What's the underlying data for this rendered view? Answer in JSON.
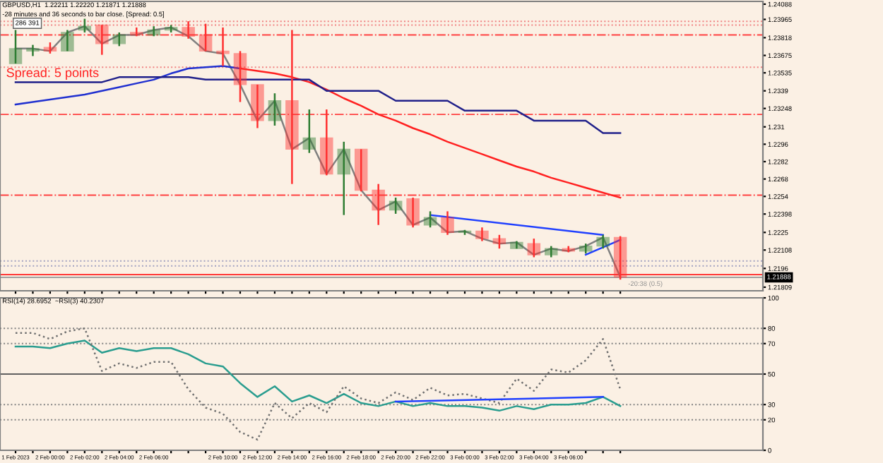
{
  "chart_data": [
    {
      "type": "candlestick",
      "title": "GBPUSD,H1  1.22211 1.22220 1.21871 1.21888",
      "subtitle": "-28 minutes and 36 seconds to bar close. [Spread: 0.5]",
      "annotations": [
        "286 391",
        "Spread: 5 points",
        {
          "text": "-20:38 (0.5)",
          "y": 1.2189
        }
      ],
      "categories": [
        null,
        null,
        null,
        null,
        null,
        null,
        null,
        null,
        null,
        null,
        null,
        null,
        null,
        null,
        null,
        null,
        null,
        null,
        null,
        null,
        null,
        null,
        null,
        null,
        null,
        null,
        null,
        null,
        null,
        null,
        null,
        null,
        null,
        null,
        null,
        null
      ],
      "ohlc": [
        [
          1.2361,
          1.2388,
          1.2361,
          1.2373
        ],
        [
          1.2371,
          1.2376,
          1.2367,
          1.2373
        ],
        [
          1.2374,
          1.2378,
          1.2369,
          1.2371
        ],
        [
          1.2371,
          1.2388,
          1.2371,
          1.2386
        ],
        [
          1.2388,
          1.2397,
          1.2386,
          1.2391
        ],
        [
          1.2392,
          1.2392,
          1.2368,
          1.2377
        ],
        [
          1.2377,
          1.2386,
          1.2375,
          1.2384
        ],
        [
          1.2386,
          1.239,
          1.2383,
          1.2384
        ],
        [
          1.2384,
          1.2391,
          1.2383,
          1.2388
        ],
        [
          1.2388,
          1.2392,
          1.2386,
          1.239
        ],
        [
          1.239,
          1.2395,
          1.2381,
          1.2383
        ],
        [
          1.2384,
          1.2393,
          1.2371,
          1.2371
        ],
        [
          1.2371,
          1.239,
          1.2359,
          1.2369
        ],
        [
          1.2369,
          1.2371,
          1.233,
          1.2344
        ],
        [
          1.2344,
          1.2344,
          1.2309,
          1.2315
        ],
        [
          1.2315,
          1.2337,
          1.2311,
          1.2331
        ],
        [
          1.2331,
          1.2388,
          1.2264,
          1.2292
        ],
        [
          1.2292,
          1.2324,
          1.2289,
          1.2301
        ],
        [
          1.2301,
          1.2324,
          1.2271,
          1.2272
        ],
        [
          1.2272,
          1.2298,
          1.2239,
          1.2292
        ],
        [
          1.2292,
          1.2292,
          1.2258,
          1.2259
        ],
        [
          1.2259,
          1.2264,
          1.2231,
          1.2243
        ],
        [
          1.2243,
          1.2253,
          1.224,
          1.225
        ],
        [
          1.2252,
          1.2253,
          1.2229,
          1.2231
        ],
        [
          1.2231,
          1.2242,
          1.2229,
          1.2237
        ],
        [
          1.2237,
          1.2242,
          1.2223,
          1.2225
        ],
        [
          1.2225,
          1.2227,
          1.2223,
          1.2226
        ],
        [
          1.2226,
          1.2229,
          1.2218,
          1.222
        ],
        [
          1.222,
          1.2223,
          1.2212,
          1.2216
        ],
        [
          1.2212,
          1.2218,
          1.2212,
          1.2217
        ],
        [
          1.2216,
          1.222,
          1.2205,
          1.2207
        ],
        [
          1.2207,
          1.2214,
          1.2205,
          1.2212
        ],
        [
          1.2212,
          1.2214,
          1.2209,
          1.221
        ],
        [
          1.221,
          1.2216,
          1.2208,
          1.2214
        ],
        [
          1.2214,
          1.2223,
          1.2212,
          1.2221
        ],
        [
          1.2221,
          1.2222,
          1.2187,
          1.2189
        ]
      ],
      "colors": [
        "#2e7d32",
        "#2e7d32",
        "#ff3030",
        "#2e7d32",
        "#2e7d32",
        "#ff3030",
        "#2e7d32",
        "#ff3030",
        "#2e7d32",
        "#2e7d32",
        "#ff3030",
        "#ff3030",
        "#ff3030",
        "#ff3030",
        "#ff3030",
        "#2e7d32",
        "#ff3030",
        "#2e7d32",
        "#ff3030",
        "#2e7d32",
        "#ff3030",
        "#ff3030",
        "#2e7d32",
        "#ff3030",
        "#2e7d32",
        "#ff3030",
        "#2e7d32",
        "#ff3030",
        "#ff3030",
        "#2e7d32",
        "#ff3030",
        "#2e7d32",
        "#ff3030",
        "#2e7d32",
        "#2e7d32",
        "#ff3030"
      ],
      "series": [
        {
          "type": "line",
          "color": "#808080",
          "values": [
            1.2373,
            1.2373,
            1.2371,
            1.2386,
            1.2391,
            1.2377,
            1.2384,
            1.2384,
            1.2388,
            1.239,
            1.2383,
            1.2371,
            1.2369,
            1.2344,
            1.2315,
            1.2331,
            1.2292,
            1.2301,
            1.2272,
            1.2292,
            1.2259,
            1.2243,
            1.225,
            1.2231,
            1.2237,
            1.2225,
            1.2226,
            1.222,
            1.2216,
            1.2217,
            1.2207,
            1.2212,
            1.221,
            1.2214,
            1.2221,
            1.2189
          ]
        },
        {
          "type": "line",
          "color": "#2030d0",
          "values": [
            1.2328,
            1.233,
            1.2332,
            1.2334,
            1.2336,
            1.2339,
            1.2342,
            1.2345,
            1.2348,
            1.2353,
            1.2357,
            1.2358,
            1.2359,
            1.2357,
            null,
            null,
            null,
            null,
            null,
            null,
            null,
            null,
            null,
            null,
            null,
            null,
            null,
            null,
            null,
            null,
            null,
            null,
            null,
            null,
            null,
            null
          ]
        },
        {
          "type": "line",
          "color": "#ff2020",
          "values": [
            null,
            null,
            null,
            null,
            null,
            null,
            null,
            null,
            null,
            null,
            null,
            null,
            null,
            1.2357,
            1.2355,
            1.2353,
            1.235,
            1.2346,
            1.234,
            1.2333,
            1.2327,
            1.232,
            1.2315,
            1.2309,
            1.2304,
            1.2298,
            1.2293,
            1.2288,
            1.2283,
            1.2278,
            1.2274,
            1.2269,
            1.2265,
            1.2261,
            1.2257,
            1.2253
          ]
        },
        {
          "type": "line",
          "color": "#20208a",
          "values": [
            1.2346,
            1.2346,
            1.2346,
            1.2346,
            1.2346,
            1.2346,
            1.235,
            1.235,
            1.235,
            1.235,
            1.235,
            1.2348,
            1.2348,
            1.2348,
            1.2348,
            1.2348,
            1.2348,
            1.2348,
            1.2339,
            1.2339,
            1.2339,
            1.2339,
            1.2331,
            1.2331,
            1.2331,
            1.2331,
            1.2323,
            1.2323,
            1.2323,
            1.2323,
            1.2315,
            1.2315,
            1.2315,
            1.2315,
            1.2305,
            1.2305
          ]
        },
        {
          "type": "line",
          "color": "#2040ff",
          "values": [
            null,
            null,
            null,
            null,
            null,
            null,
            null,
            null,
            null,
            null,
            null,
            null,
            null,
            null,
            null,
            null,
            null,
            null,
            null,
            null,
            null,
            null,
            null,
            null,
            1.2239,
            null,
            null,
            null,
            null,
            null,
            null,
            null,
            null,
            null,
            1.2223,
            null
          ]
        },
        {
          "type": "line",
          "color": "#2040ff",
          "values": [
            null,
            null,
            null,
            null,
            null,
            null,
            null,
            null,
            null,
            null,
            null,
            null,
            null,
            null,
            null,
            null,
            null,
            null,
            null,
            null,
            null,
            null,
            null,
            null,
            null,
            null,
            null,
            null,
            null,
            null,
            null,
            null,
            null,
            1.2207,
            null,
            1.2219
          ]
        }
      ],
      "ref_lines": [
        {
          "axis": "y",
          "value": 1.2384,
          "color": "#ff4040",
          "line_style": "dashdot"
        },
        {
          "axis": "y",
          "value": 1.232,
          "color": "#ff4040",
          "line_style": "dashdot"
        },
        {
          "axis": "y",
          "value": 1.2255,
          "color": "#ff4040",
          "line_style": "dashdot"
        },
        {
          "axis": "y",
          "value": 1.2395,
          "color": "#f08080",
          "line_style": "dotted"
        },
        {
          "axis": "y",
          "value": 1.2392,
          "color": "#f08080",
          "line_style": "dotted"
        },
        {
          "axis": "y",
          "value": 1.2358,
          "color": "#f08080",
          "line_style": "dotted"
        },
        {
          "axis": "y",
          "value": 1.2202,
          "color": "#a0a0c0",
          "line_style": "dotted"
        },
        {
          "axis": "y",
          "value": 1.2198,
          "color": "#a0a0c0",
          "line_style": "dotted"
        },
        {
          "axis": "y",
          "value": 1.2191,
          "color": "#ff2020",
          "line_style": "solid"
        },
        {
          "axis": "y",
          "value": 1.21888,
          "color": "#a0a0a0",
          "line_style": "solid",
          "label": "1.21888"
        }
      ],
      "ylim": [
        1.2178,
        1.2411
      ],
      "yticks": [
        1.24088,
        1.23965,
        1.23818,
        1.23675,
        1.23535,
        1.2339,
        1.23248,
        1.231,
        1.2296,
        1.2282,
        1.2268,
        1.2254,
        1.22398,
        1.2225,
        1.22108,
        1.2196,
        1.21809
      ],
      "tick_labels": "y",
      "grid": false,
      "legend": false
    },
    {
      "type": "line",
      "title": "RSI(14) 28.6952  ~RSI(3) 40.2307",
      "categories": [
        "1 Feb 2023",
        null,
        "2 Feb 00:00",
        null,
        "2 Feb 02:00",
        null,
        "2 Feb 04:00",
        null,
        "2 Feb 06:00",
        null,
        null,
        null,
        "2 Feb 10:00",
        null,
        "2 Feb 12:00",
        null,
        "2 Feb 14:00",
        null,
        "2 Feb 16:00",
        null,
        "2 Feb 18:00",
        null,
        "2 Feb 20:00",
        null,
        "2 Feb 22:00",
        null,
        "3 Feb 00:00",
        null,
        "3 Feb 02:00",
        null,
        "3 Feb 04:00",
        null,
        "3 Feb 06:00",
        null,
        null,
        null
      ],
      "series": [
        {
          "color": "#2a9d8f",
          "line_style": "solid",
          "values": [
            68,
            68,
            67,
            70,
            72,
            64,
            67,
            65,
            67,
            67,
            63,
            57,
            55,
            44,
            35,
            42,
            32,
            36,
            31,
            37,
            31,
            29,
            32,
            29,
            31,
            29,
            29,
            28,
            26,
            29,
            27,
            30,
            30,
            31,
            35,
            29
          ]
        },
        {
          "color": "#707070",
          "line_style": "dotted",
          "values": [
            77,
            77,
            73,
            78,
            80,
            52,
            57,
            54,
            58,
            58,
            40,
            28,
            24,
            12,
            7,
            31,
            21,
            31,
            25,
            42,
            34,
            31,
            38,
            33,
            41,
            36,
            37,
            34,
            31,
            47,
            39,
            53,
            51,
            59,
            73,
            40
          ]
        },
        {
          "color": "#2040ff",
          "line_style": "solid",
          "values": [
            null,
            null,
            null,
            null,
            null,
            null,
            null,
            null,
            null,
            null,
            null,
            null,
            null,
            null,
            null,
            null,
            null,
            null,
            null,
            null,
            null,
            null,
            32,
            null,
            null,
            null,
            null,
            null,
            null,
            null,
            null,
            null,
            null,
            null,
            35,
            null
          ]
        }
      ],
      "ref_lines": [
        {
          "axis": "y",
          "value": 80,
          "color": "#808080",
          "line_style": "dotted"
        },
        {
          "axis": "y",
          "value": 70,
          "color": "#808080",
          "line_style": "dotted"
        },
        {
          "axis": "y",
          "value": 50,
          "color": "#606060",
          "line_style": "solid"
        },
        {
          "axis": "y",
          "value": 30,
          "color": "#808080",
          "line_style": "dotted"
        },
        {
          "axis": "y",
          "value": 20,
          "color": "#808080",
          "line_style": "dotted"
        }
      ],
      "ylim": [
        0,
        100
      ],
      "yticks": [
        0,
        20,
        30,
        50,
        70,
        80,
        100
      ],
      "grid": false,
      "legend": false
    }
  ]
}
